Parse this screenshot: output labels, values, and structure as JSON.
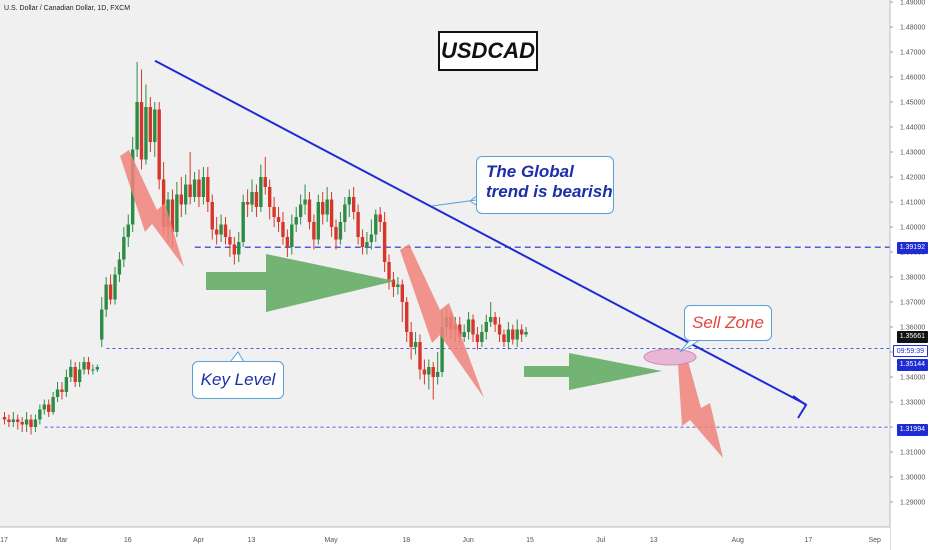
{
  "header": {
    "symbol_text": "U.S. Dollar / Canadian Dollar, 1D, FXCM"
  },
  "title": "USDCAD",
  "annotations": {
    "trend": "The Global\ntrend is bearish",
    "key_level": "Key Level",
    "sell_zone": "Sell Zone"
  },
  "price_tags": {
    "upper_level": "1.39192",
    "current_price": "1.35661",
    "countdown": "09:59:39",
    "key_level": "1.35144",
    "lower_level": "1.31994"
  },
  "colors": {
    "up_candle": "#2e8b45",
    "down_candle": "#d8352b",
    "trendline": "#1f2bd4",
    "level_line": "#1f2bd4",
    "arrow_red": "#f0827a",
    "arrow_green": "#5da95f",
    "sell_ellipse": "#e9b0d3"
  },
  "chart_data": {
    "type": "candlestick",
    "title": "USDCAD",
    "ylim": [
      1.28,
      1.49
    ],
    "y_ticks": [
      "1.29000",
      "1.30000",
      "1.31000",
      "1.32000",
      "1.33000",
      "1.34000",
      "1.35000",
      "1.36000",
      "1.37000",
      "1.38000",
      "1.39000",
      "1.40000",
      "1.41000",
      "1.42000",
      "1.43000",
      "1.44000",
      "1.45000",
      "1.46000",
      "1.47000",
      "1.48000",
      "1.49000"
    ],
    "x_ticks": [
      {
        "label": "17",
        "day": 0
      },
      {
        "label": "Mar",
        "day": 13
      },
      {
        "label": "16",
        "day": 28
      },
      {
        "label": "Apr",
        "day": 44
      },
      {
        "label": "13",
        "day": 56
      },
      {
        "label": "May",
        "day": 74
      },
      {
        "label": "18",
        "day": 91
      },
      {
        "label": "Jun",
        "day": 105
      },
      {
        "label": "15",
        "day": 119
      },
      {
        "label": "Jul",
        "day": 135
      },
      {
        "label": "13",
        "day": 147
      },
      {
        "label": "Aug",
        "day": 166
      },
      {
        "label": "17",
        "day": 182
      },
      {
        "label": "Sep",
        "day": 197
      }
    ],
    "horizontal_levels": [
      1.39192,
      1.35144,
      1.31994
    ],
    "trendline": {
      "start": {
        "day": 30,
        "price": 1.4665
      },
      "end": {
        "day": 183,
        "price": 1.329
      }
    },
    "candles": [
      [
        1.324,
        1.323,
        1.326,
        1.321
      ],
      [
        1.323,
        1.322,
        1.325,
        1.32
      ],
      [
        1.322,
        1.323,
        1.326,
        1.32
      ],
      [
        1.323,
        1.322,
        1.325,
        1.319
      ],
      [
        1.322,
        1.321,
        1.324,
        1.318
      ],
      [
        1.321,
        1.323,
        1.326,
        1.318
      ],
      [
        1.323,
        1.32,
        1.325,
        1.317
      ],
      [
        1.32,
        1.323,
        1.325,
        1.318
      ],
      [
        1.323,
        1.327,
        1.329,
        1.321
      ],
      [
        1.327,
        1.329,
        1.331,
        1.325
      ],
      [
        1.329,
        1.326,
        1.331,
        1.324
      ],
      [
        1.326,
        1.332,
        1.334,
        1.325
      ],
      [
        1.332,
        1.335,
        1.338,
        1.33
      ],
      [
        1.335,
        1.334,
        1.338,
        1.331
      ],
      [
        1.334,
        1.34,
        1.343,
        1.332
      ],
      [
        1.34,
        1.344,
        1.347,
        1.338
      ],
      [
        1.344,
        1.338,
        1.346,
        1.336
      ],
      [
        1.338,
        1.343,
        1.346,
        1.336
      ],
      [
        1.343,
        1.346,
        1.348,
        1.341
      ],
      [
        1.346,
        1.343,
        1.348,
        1.341
      ],
      [
        1.343,
        1.343,
        1.345,
        1.341
      ],
      [
        1.343,
        1.344,
        1.345,
        1.342
      ],
      [
        1.355,
        1.367,
        1.372,
        1.352
      ],
      [
        1.367,
        1.377,
        1.38,
        1.364
      ],
      [
        1.377,
        1.371,
        1.381,
        1.369
      ],
      [
        1.371,
        1.381,
        1.384,
        1.369
      ],
      [
        1.381,
        1.387,
        1.39,
        1.378
      ],
      [
        1.387,
        1.396,
        1.4,
        1.384
      ],
      [
        1.396,
        1.401,
        1.405,
        1.392
      ],
      [
        1.401,
        1.431,
        1.436,
        1.398
      ],
      [
        1.431,
        1.45,
        1.466,
        1.428
      ],
      [
        1.45,
        1.427,
        1.463,
        1.423
      ],
      [
        1.427,
        1.448,
        1.457,
        1.425
      ],
      [
        1.448,
        1.434,
        1.452,
        1.43
      ],
      [
        1.434,
        1.447,
        1.45,
        1.428
      ],
      [
        1.447,
        1.419,
        1.45,
        1.415
      ],
      [
        1.419,
        1.4,
        1.426,
        1.397
      ],
      [
        1.4,
        1.411,
        1.414,
        1.394
      ],
      [
        1.411,
        1.398,
        1.415,
        1.392
      ],
      [
        1.398,
        1.413,
        1.418,
        1.396
      ],
      [
        1.413,
        1.409,
        1.42,
        1.404
      ],
      [
        1.409,
        1.417,
        1.421,
        1.405
      ],
      [
        1.417,
        1.412,
        1.43,
        1.409
      ],
      [
        1.412,
        1.419,
        1.422,
        1.41
      ],
      [
        1.419,
        1.412,
        1.423,
        1.408
      ],
      [
        1.412,
        1.42,
        1.424,
        1.409
      ],
      [
        1.42,
        1.41,
        1.424,
        1.406
      ],
      [
        1.41,
        1.399,
        1.413,
        1.395
      ],
      [
        1.399,
        1.397,
        1.404,
        1.393
      ],
      [
        1.397,
        1.401,
        1.405,
        1.394
      ],
      [
        1.401,
        1.396,
        1.404,
        1.393
      ],
      [
        1.396,
        1.393,
        1.399,
        1.388
      ],
      [
        1.393,
        1.389,
        1.396,
        1.385
      ],
      [
        1.389,
        1.394,
        1.398,
        1.386
      ],
      [
        1.394,
        1.41,
        1.413,
        1.392
      ],
      [
        1.41,
        1.409,
        1.415,
        1.404
      ],
      [
        1.409,
        1.414,
        1.419,
        1.406
      ],
      [
        1.414,
        1.408,
        1.417,
        1.404
      ],
      [
        1.408,
        1.42,
        1.425,
        1.406
      ],
      [
        1.42,
        1.416,
        1.428,
        1.413
      ],
      [
        1.416,
        1.408,
        1.419,
        1.403
      ],
      [
        1.408,
        1.404,
        1.412,
        1.4
      ],
      [
        1.404,
        1.402,
        1.408,
        1.398
      ],
      [
        1.402,
        1.396,
        1.406,
        1.393
      ],
      [
        1.396,
        1.392,
        1.399,
        1.388
      ],
      [
        1.392,
        1.401,
        1.405,
        1.389
      ],
      [
        1.401,
        1.404,
        1.408,
        1.398
      ],
      [
        1.404,
        1.409,
        1.413,
        1.401
      ],
      [
        1.409,
        1.411,
        1.417,
        1.405
      ],
      [
        1.411,
        1.402,
        1.414,
        1.399
      ],
      [
        1.402,
        1.395,
        1.405,
        1.391
      ],
      [
        1.395,
        1.41,
        1.413,
        1.393
      ],
      [
        1.41,
        1.405,
        1.414,
        1.401
      ],
      [
        1.405,
        1.411,
        1.416,
        1.402
      ],
      [
        1.411,
        1.4,
        1.414,
        1.396
      ],
      [
        1.4,
        1.395,
        1.403,
        1.391
      ],
      [
        1.395,
        1.402,
        1.406,
        1.393
      ],
      [
        1.402,
        1.409,
        1.412,
        1.398
      ],
      [
        1.409,
        1.412,
        1.415,
        1.404
      ],
      [
        1.412,
        1.406,
        1.416,
        1.403
      ],
      [
        1.406,
        1.396,
        1.409,
        1.393
      ],
      [
        1.396,
        1.392,
        1.399,
        1.389
      ],
      [
        1.392,
        1.394,
        1.398,
        1.389
      ],
      [
        1.394,
        1.397,
        1.403,
        1.391
      ],
      [
        1.397,
        1.405,
        1.407,
        1.394
      ],
      [
        1.405,
        1.402,
        1.408,
        1.398
      ],
      [
        1.402,
        1.386,
        1.406,
        1.382
      ],
      [
        1.386,
        1.379,
        1.389,
        1.375
      ],
      [
        1.379,
        1.376,
        1.382,
        1.372
      ],
      [
        1.376,
        1.377,
        1.38,
        1.373
      ],
      [
        1.377,
        1.37,
        1.379,
        1.362
      ],
      [
        1.37,
        1.358,
        1.372,
        1.354
      ],
      [
        1.358,
        1.352,
        1.362,
        1.347
      ],
      [
        1.352,
        1.354,
        1.358,
        1.349
      ],
      [
        1.354,
        1.343,
        1.357,
        1.339
      ],
      [
        1.343,
        1.341,
        1.347,
        1.337
      ],
      [
        1.341,
        1.344,
        1.347,
        1.335
      ],
      [
        1.344,
        1.34,
        1.346,
        1.331
      ],
      [
        1.34,
        1.342,
        1.35,
        1.337
      ],
      [
        1.342,
        1.36,
        1.367,
        1.34
      ],
      [
        1.36,
        1.364,
        1.368,
        1.356
      ],
      [
        1.364,
        1.359,
        1.366,
        1.355
      ],
      [
        1.359,
        1.361,
        1.364,
        1.354
      ],
      [
        1.361,
        1.356,
        1.364,
        1.353
      ],
      [
        1.356,
        1.358,
        1.361,
        1.354
      ],
      [
        1.358,
        1.363,
        1.366,
        1.355
      ],
      [
        1.363,
        1.357,
        1.365,
        1.354
      ],
      [
        1.357,
        1.354,
        1.36,
        1.351
      ],
      [
        1.354,
        1.358,
        1.361,
        1.352
      ],
      [
        1.358,
        1.362,
        1.365,
        1.355
      ],
      [
        1.362,
        1.364,
        1.37,
        1.36
      ],
      [
        1.364,
        1.361,
        1.366,
        1.358
      ],
      [
        1.361,
        1.357,
        1.364,
        1.354
      ],
      [
        1.357,
        1.354,
        1.359,
        1.352
      ],
      [
        1.354,
        1.359,
        1.362,
        1.351
      ],
      [
        1.359,
        1.355,
        1.361,
        1.353
      ],
      [
        1.355,
        1.359,
        1.363,
        1.352
      ],
      [
        1.359,
        1.357,
        1.361,
        1.354
      ],
      [
        1.357,
        1.358,
        1.36,
        1.356
      ]
    ]
  }
}
